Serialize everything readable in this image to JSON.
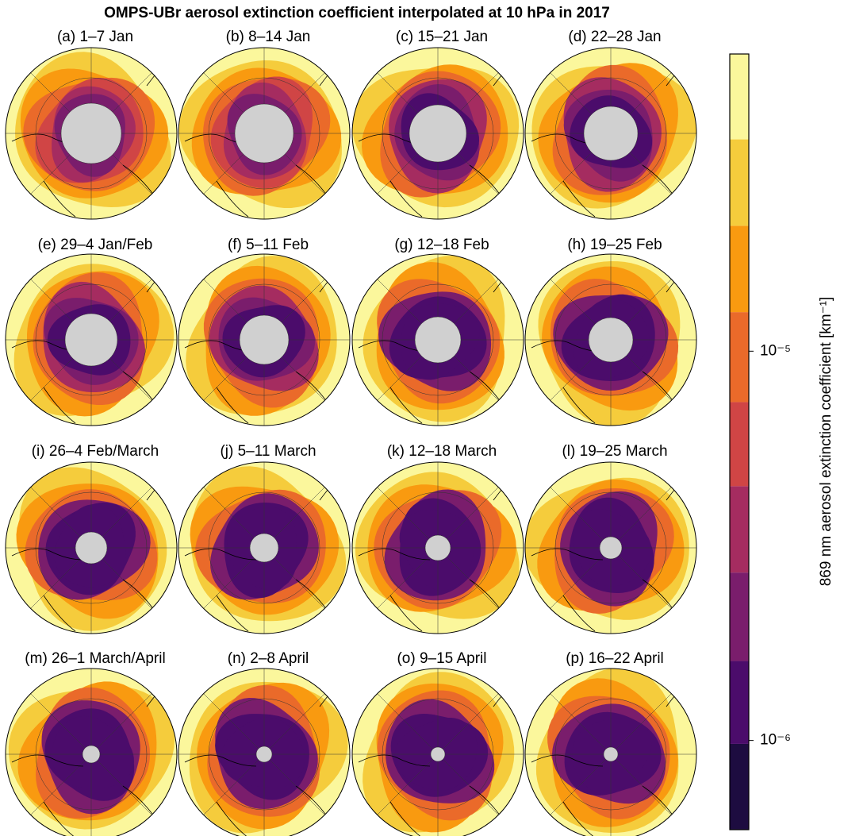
{
  "chart_data": {
    "type": "polar-contour-grid",
    "title": "OMPS-UBr aerosol extinction coefficient interpolated at 10 hPa in 2017",
    "panels": [
      "(a) 1–7 Jan",
      "(b) 8–14 Jan",
      "(c) 15–21 Jan",
      "(d) 22–28 Jan",
      "(e) 29–4 Jan/Feb",
      "(f) 5–11 Feb",
      "(g) 12–18 Feb",
      "(h) 19–25 Feb",
      "(i) 26–4 Feb/March",
      "(j) 5–11 March",
      "(k) 12–18 March",
      "(l) 19–25 March",
      "(m) 26–1 March/April",
      "(n) 2–8 April",
      "(o) 9–15 April",
      "(p) 16–22 April"
    ],
    "colorbar": {
      "label": "869 nm aerosol extinction coefficient [km⁻¹]",
      "log": true,
      "ylim": [
        5.9e-07,
        5.8e-05
      ],
      "levels": [
        5.9e-07,
        9.8e-07,
        1.6e-06,
        2.7e-06,
        4.5e-06,
        7.4e-06,
        1.26e-05,
        2.1e-05,
        3.5e-05,
        5.8e-05
      ],
      "colors": [
        "#1d0c40",
        "#4b0c6b",
        "#7a1d6c",
        "#a52c60",
        "#d04545",
        "#ea6a2a",
        "#f99a10",
        "#f5cc3c",
        "#fbf79c"
      ],
      "yticks": [
        {
          "value": 1e-06,
          "label": "10⁻⁶"
        },
        {
          "value": 1e-05,
          "label": "10⁻⁵"
        }
      ]
    }
  }
}
